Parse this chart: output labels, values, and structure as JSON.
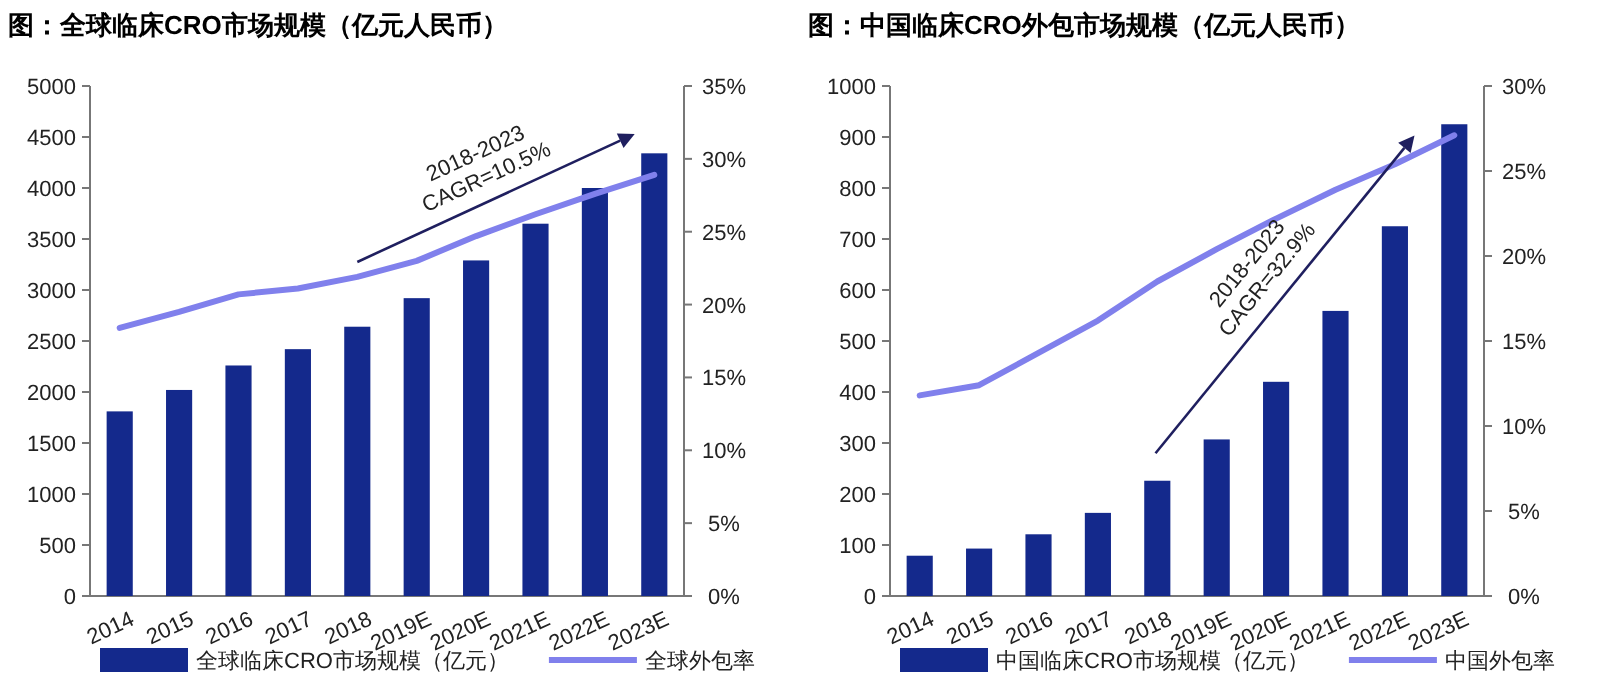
{
  "chart_data": [
    {
      "type": "bar",
      "title": "图：全球临床CRO市场规模（亿元人民币）",
      "categories": [
        "2014",
        "2015",
        "2016",
        "2017",
        "2018",
        "2019E",
        "2020E",
        "2021E",
        "2022E",
        "2023E"
      ],
      "series": [
        {
          "name": "全球临床CRO市场规模（亿元）",
          "color": "#14298c",
          "values": [
            1810,
            2020,
            2260,
            2420,
            2640,
            2920,
            3290,
            3650,
            4000,
            4340
          ]
        },
        {
          "name": "全球外包率",
          "type": "line",
          "axis": "y2",
          "color": "#8080ec",
          "values": [
            18.4,
            19.5,
            20.7,
            21.1,
            21.9,
            23.0,
            24.7,
            26.2,
            27.6,
            28.9
          ]
        }
      ],
      "ylim": [
        0,
        5000
      ],
      "yticks": [
        0,
        500,
        1000,
        1500,
        2000,
        2500,
        3000,
        3500,
        4000,
        4500,
        5000
      ],
      "y2lim": [
        0,
        35
      ],
      "y2ticks": [
        {
          "value": 0,
          "label": "0%"
        },
        {
          "value": 5,
          "label": "5%"
        },
        {
          "value": 10,
          "label": "10%"
        },
        {
          "value": 15,
          "label": "15%"
        },
        {
          "value": 20,
          "label": "20%"
        },
        {
          "value": 25,
          "label": "25%"
        },
        {
          "value": 30,
          "label": "30%"
        },
        {
          "value": 35,
          "label": "35%"
        }
      ],
      "legend": "bottom",
      "annotations": [
        "2018-2023\nCAGR=10.5%"
      ]
    },
    {
      "type": "bar",
      "title": "图：中国临床CRO外包市场规模（亿元人民币）",
      "categories": [
        "2014",
        "2015",
        "2016",
        "2017",
        "2018",
        "2019E",
        "2020E",
        "2021E",
        "2022E",
        "2023E"
      ],
      "series": [
        {
          "name": "中国临床CRO市场规模（亿元）",
          "color": "#14298c",
          "values": [
            79,
            93,
            121,
            163,
            226,
            307,
            420,
            559,
            725,
            925
          ]
        },
        {
          "name": "中国外包率",
          "type": "line",
          "axis": "y2",
          "color": "#8080ec",
          "values": [
            11.8,
            12.4,
            14.3,
            16.2,
            18.5,
            20.4,
            22.2,
            23.9,
            25.4,
            27.1
          ]
        }
      ],
      "ylim": [
        0,
        1000
      ],
      "yticks": [
        0,
        100,
        200,
        300,
        400,
        500,
        600,
        700,
        800,
        900,
        1000
      ],
      "y2lim": [
        0,
        30
      ],
      "y2ticks": [
        {
          "value": 0,
          "label": "0%"
        },
        {
          "value": 5,
          "label": "5%"
        },
        {
          "value": 10,
          "label": "10%"
        },
        {
          "value": 15,
          "label": "15%"
        },
        {
          "value": 20,
          "label": "20%"
        },
        {
          "value": 25,
          "label": "25%"
        },
        {
          "value": 30,
          "label": "30%"
        }
      ],
      "legend": "bottom",
      "annotations": [
        "2018-2023\nCAGR=32.9%"
      ]
    }
  ]
}
